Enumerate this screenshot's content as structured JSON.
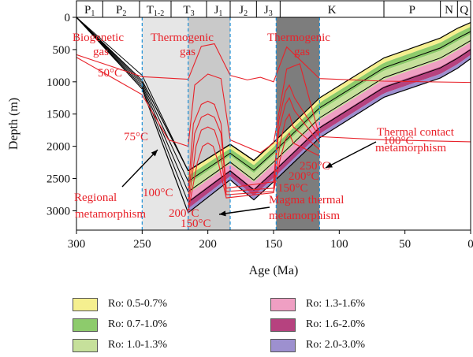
{
  "chart_data": {
    "type": "area",
    "xlabel": "Age (Ma)",
    "ylabel": "Depth (m)",
    "xlim": [
      300,
      0
    ],
    "ylim": [
      3300,
      0
    ],
    "x_ticks": [
      300,
      250,
      200,
      150,
      100,
      50,
      0
    ],
    "y_ticks": [
      0,
      500,
      1000,
      1500,
      2000,
      2500,
      3000
    ],
    "periods": [
      {
        "label": "P",
        "sub": "1",
        "start": 300,
        "end": 280
      },
      {
        "label": "P",
        "sub": "2",
        "start": 280,
        "end": 252
      },
      {
        "label": "T",
        "sub": "1-2",
        "start": 252,
        "end": 228
      },
      {
        "label": "T",
        "sub": "3",
        "start": 228,
        "end": 201
      },
      {
        "label": "J",
        "sub": "1",
        "start": 201,
        "end": 183
      },
      {
        "label": "J",
        "sub": "2",
        "start": 183,
        "end": 163
      },
      {
        "label": "J",
        "sub": "3",
        "start": 163,
        "end": 145
      },
      {
        "label": "K",
        "sub": "",
        "start": 145,
        "end": 66
      },
      {
        "label": "P",
        "sub": "",
        "start": 66,
        "end": 23
      },
      {
        "label": "N",
        "sub": "",
        "start": 23,
        "end": 10
      },
      {
        "label": "Q",
        "sub": "",
        "start": 10,
        "end": 0
      }
    ],
    "legend": [
      {
        "label": "Ro: 0.5-0.7%",
        "color": "#f5ef8f"
      },
      {
        "label": "Ro: 0.7-1.0%",
        "color": "#8dcb6c"
      },
      {
        "label": "Ro: 1.0-1.3%",
        "color": "#c6e09b"
      },
      {
        "label": "Ro: 1.3-1.6%",
        "color": "#ef9fc3"
      },
      {
        "label": "Ro: 1.6-2.0%",
        "color": "#b6427f"
      },
      {
        "label": "Ro: 2.0-3.0%",
        "color": "#9d90cf"
      }
    ],
    "annotations": [
      {
        "text": "Biogenetic",
        "color": "#e8222a"
      },
      {
        "text": "gas",
        "color": "#e8222a"
      },
      {
        "text": "Thermogenic",
        "color": "#e8222a"
      },
      {
        "text": "gas",
        "color": "#e8222a"
      },
      {
        "text": "Thermogenic",
        "color": "#e8222a"
      },
      {
        "text": "gas",
        "color": "#e8222a"
      },
      {
        "text": "50°C",
        "color": "#e8222a"
      },
      {
        "text": "75°C",
        "color": "#e8222a"
      },
      {
        "text": "100°C",
        "color": "#e8222a"
      },
      {
        "text": "100°C",
        "color": "#e8222a"
      },
      {
        "text": "Regional",
        "color": "#e8222a"
      },
      {
        "text": "metamorphism",
        "color": "#e8222a"
      },
      {
        "text": "200°C",
        "color": "#e8222a"
      },
      {
        "text": "150°C",
        "color": "#e8222a"
      },
      {
        "text": "Magma thermal",
        "color": "#e8222a"
      },
      {
        "text": "metamorphism",
        "color": "#e8222a"
      },
      {
        "text": "250°C",
        "color": "#e8222a"
      },
      {
        "text": "200°C",
        "color": "#e8222a"
      },
      {
        "text": "150°C",
        "color": "#e8222a"
      },
      {
        "text": "Thermal contact",
        "color": "#e8222a"
      },
      {
        "text": "metamorphism",
        "color": "#e8222a"
      }
    ],
    "burial_top": {
      "x": [
        300,
        250,
        215,
        183,
        165,
        150,
        115,
        66,
        23,
        10,
        0
      ],
      "y": [
        0,
        980,
        2380,
        1970,
        2220,
        1940,
        1250,
        630,
        320,
        170,
        80
      ]
    },
    "burial_base": {
      "x": [
        300,
        250,
        215,
        183,
        165,
        150,
        115,
        66,
        23,
        10,
        0
      ],
      "y": [
        0,
        1110,
        3030,
        2520,
        2830,
        2550,
        1870,
        1240,
        940,
        790,
        640
      ]
    },
    "isotherms": [
      {
        "label": "50°C",
        "x": [
          300,
          250,
          215,
          205,
          195,
          183,
          170,
          160,
          150,
          140,
          115,
          66,
          0
        ],
        "y": [
          580,
          920,
          960,
          450,
          410,
          900,
          970,
          930,
          1000,
          460,
          950,
          990,
          1010
        ]
      },
      {
        "label": "75°C",
        "x": [
          300,
          250,
          230,
          215,
          210,
          200,
          190,
          183,
          160,
          150,
          140,
          130,
          115,
          66,
          0
        ],
        "y": [
          620,
          1200,
          1900,
          2000,
          1050,
          880,
          950,
          1900,
          2100,
          1950,
          800,
          720,
          1850,
          1900,
          1930
        ]
      },
      {
        "label": "100°C",
        "x": [
          215,
          211,
          205,
          200,
          195,
          190,
          186,
          150,
          146,
          141,
          138,
          134,
          115
        ],
        "y": [
          2700,
          1650,
          1350,
          1300,
          1350,
          1650,
          2650,
          2550,
          1600,
          1150,
          1050,
          1250,
          1850
        ]
      },
      {
        "label": "150°C",
        "x": [
          215,
          210,
          205,
          200,
          195,
          190,
          186,
          150,
          146,
          141,
          138,
          134,
          115
        ],
        "y": [
          2850,
          1800,
          1550,
          1500,
          1550,
          1800,
          2700,
          2650,
          1750,
          1350,
          1250,
          1450,
          1950
        ]
      },
      {
        "label": "200°C",
        "x": [
          215,
          209,
          205,
          200,
          195,
          191,
          186,
          150,
          145,
          141,
          138,
          135,
          115
        ],
        "y": [
          2950,
          2000,
          1750,
          1700,
          1750,
          2000,
          2750,
          2700,
          1950,
          1600,
          1500,
          1700,
          2050
        ]
      },
      {
        "label": "250°C",
        "x": [
          215,
          208,
          204,
          200,
          196,
          192,
          186,
          150,
          145,
          141,
          138,
          135,
          115
        ],
        "y": [
          3020,
          2250,
          2000,
          1950,
          2000,
          2250,
          2800,
          2720,
          2200,
          1900,
          1800,
          1950,
          2150
        ]
      }
    ]
  }
}
